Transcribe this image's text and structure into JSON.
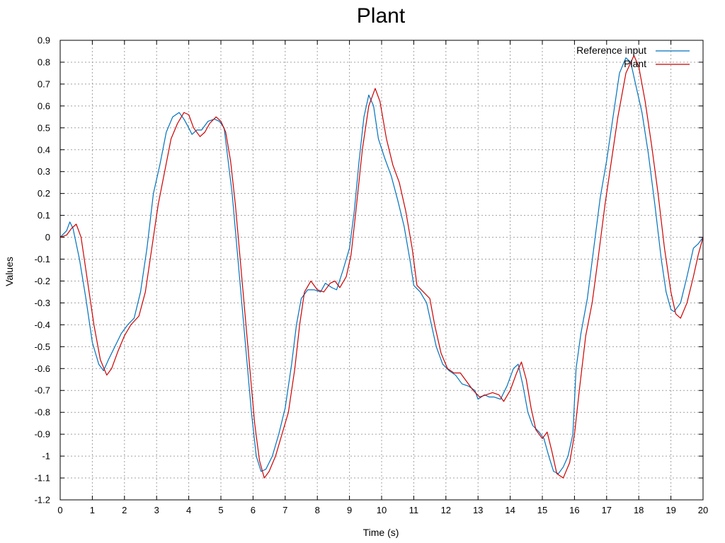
{
  "chart_data": {
    "type": "line",
    "title": "Plant",
    "xlabel": "Time (s)",
    "ylabel": "Values",
    "xlim": [
      0,
      20
    ],
    "ylim": [
      -1.2,
      0.9
    ],
    "grid": true,
    "legend_position": "top-right",
    "x_ticks": [
      "0",
      "1",
      "2",
      "3",
      "4",
      "5",
      "6",
      "7",
      "8",
      "9",
      "10",
      "11",
      "12",
      "13",
      "14",
      "15",
      "16",
      "17",
      "18",
      "19",
      "20"
    ],
    "y_ticks": [
      "0.9",
      "0.8",
      "0.7",
      "0.6",
      "0.5",
      "0.4",
      "0.3",
      "0.2",
      "0.1",
      "0",
      "-0.1",
      "-0.2",
      "-0.3",
      "-0.4",
      "-0.5",
      "-0.6",
      "-0.7",
      "-0.8",
      "-0.9",
      "-1",
      "-1.1",
      "-1.2"
    ],
    "series": [
      {
        "name": "Reference input",
        "color": "#0072bd",
        "points": [
          [
            0,
            0
          ],
          [
            0.2,
            0.03
          ],
          [
            0.3,
            0.07
          ],
          [
            0.4,
            0.04
          ],
          [
            0.6,
            -0.1
          ],
          [
            0.8,
            -0.28
          ],
          [
            1.0,
            -0.48
          ],
          [
            1.2,
            -0.58
          ],
          [
            1.35,
            -0.61
          ],
          [
            1.5,
            -0.56
          ],
          [
            1.7,
            -0.5
          ],
          [
            1.9,
            -0.44
          ],
          [
            2.1,
            -0.4
          ],
          [
            2.3,
            -0.37
          ],
          [
            2.5,
            -0.25
          ],
          [
            2.7,
            -0.05
          ],
          [
            2.9,
            0.2
          ],
          [
            3.1,
            0.33
          ],
          [
            3.3,
            0.48
          ],
          [
            3.5,
            0.55
          ],
          [
            3.7,
            0.57
          ],
          [
            3.85,
            0.54
          ],
          [
            4.0,
            0.5
          ],
          [
            4.1,
            0.47
          ],
          [
            4.25,
            0.49
          ],
          [
            4.4,
            0.49
          ],
          [
            4.6,
            0.53
          ],
          [
            4.8,
            0.54
          ],
          [
            4.95,
            0.53
          ],
          [
            5.1,
            0.5
          ],
          [
            5.2,
            0.38
          ],
          [
            5.35,
            0.2
          ],
          [
            5.5,
            -0.05
          ],
          [
            5.65,
            -0.3
          ],
          [
            5.8,
            -0.55
          ],
          [
            5.95,
            -0.8
          ],
          [
            6.1,
            -1.0
          ],
          [
            6.25,
            -1.07
          ],
          [
            6.4,
            -1.06
          ],
          [
            6.6,
            -1.0
          ],
          [
            6.8,
            -0.9
          ],
          [
            7.0,
            -0.78
          ],
          [
            7.2,
            -0.58
          ],
          [
            7.35,
            -0.4
          ],
          [
            7.5,
            -0.28
          ],
          [
            7.7,
            -0.24
          ],
          [
            7.9,
            -0.24
          ],
          [
            8.1,
            -0.25
          ],
          [
            8.25,
            -0.21
          ],
          [
            8.45,
            -0.23
          ],
          [
            8.6,
            -0.24
          ],
          [
            8.8,
            -0.15
          ],
          [
            9.0,
            -0.05
          ],
          [
            9.15,
            0.12
          ],
          [
            9.3,
            0.35
          ],
          [
            9.45,
            0.55
          ],
          [
            9.6,
            0.65
          ],
          [
            9.75,
            0.6
          ],
          [
            9.9,
            0.45
          ],
          [
            10.1,
            0.36
          ],
          [
            10.3,
            0.28
          ],
          [
            10.5,
            0.17
          ],
          [
            10.7,
            0.05
          ],
          [
            10.9,
            -0.12
          ],
          [
            11.0,
            -0.22
          ],
          [
            11.2,
            -0.25
          ],
          [
            11.4,
            -0.3
          ],
          [
            11.55,
            -0.4
          ],
          [
            11.7,
            -0.5
          ],
          [
            11.9,
            -0.58
          ],
          [
            12.1,
            -0.61
          ],
          [
            12.3,
            -0.63
          ],
          [
            12.5,
            -0.67
          ],
          [
            12.7,
            -0.68
          ],
          [
            12.9,
            -0.7
          ],
          [
            13.0,
            -0.74
          ],
          [
            13.2,
            -0.72
          ],
          [
            13.35,
            -0.73
          ],
          [
            13.5,
            -0.73
          ],
          [
            13.7,
            -0.74
          ],
          [
            13.9,
            -0.68
          ],
          [
            14.1,
            -0.6
          ],
          [
            14.25,
            -0.58
          ],
          [
            14.4,
            -0.68
          ],
          [
            14.55,
            -0.8
          ],
          [
            14.7,
            -0.86
          ],
          [
            14.9,
            -0.89
          ],
          [
            15.05,
            -0.92
          ],
          [
            15.2,
            -1.0
          ],
          [
            15.35,
            -1.07
          ],
          [
            15.5,
            -1.08
          ],
          [
            15.65,
            -1.05
          ],
          [
            15.8,
            -1.0
          ],
          [
            15.95,
            -0.9
          ],
          [
            16.05,
            -0.6
          ],
          [
            16.2,
            -0.44
          ],
          [
            16.4,
            -0.28
          ],
          [
            16.6,
            -0.05
          ],
          [
            16.8,
            0.18
          ],
          [
            17.0,
            0.35
          ],
          [
            17.2,
            0.55
          ],
          [
            17.4,
            0.75
          ],
          [
            17.6,
            0.82
          ],
          [
            17.75,
            0.8
          ],
          [
            17.9,
            0.7
          ],
          [
            18.1,
            0.57
          ],
          [
            18.3,
            0.38
          ],
          [
            18.5,
            0.15
          ],
          [
            18.7,
            -0.1
          ],
          [
            18.85,
            -0.25
          ],
          [
            19.0,
            -0.33
          ],
          [
            19.1,
            -0.34
          ],
          [
            19.3,
            -0.3
          ],
          [
            19.5,
            -0.18
          ],
          [
            19.7,
            -0.05
          ],
          [
            19.85,
            -0.03
          ],
          [
            20.0,
            0.0
          ]
        ]
      },
      {
        "name": "Plant",
        "color": "#cc0000",
        "points": [
          [
            0,
            0
          ],
          [
            0.2,
            0.01
          ],
          [
            0.35,
            0.04
          ],
          [
            0.5,
            0.06
          ],
          [
            0.65,
            0.0
          ],
          [
            0.85,
            -0.2
          ],
          [
            1.05,
            -0.4
          ],
          [
            1.25,
            -0.56
          ],
          [
            1.45,
            -0.63
          ],
          [
            1.6,
            -0.6
          ],
          [
            1.8,
            -0.52
          ],
          [
            2.0,
            -0.45
          ],
          [
            2.2,
            -0.4
          ],
          [
            2.45,
            -0.36
          ],
          [
            2.65,
            -0.25
          ],
          [
            2.85,
            -0.05
          ],
          [
            3.05,
            0.15
          ],
          [
            3.25,
            0.3
          ],
          [
            3.45,
            0.45
          ],
          [
            3.65,
            0.52
          ],
          [
            3.85,
            0.57
          ],
          [
            4.0,
            0.56
          ],
          [
            4.15,
            0.5
          ],
          [
            4.35,
            0.46
          ],
          [
            4.5,
            0.48
          ],
          [
            4.65,
            0.52
          ],
          [
            4.85,
            0.55
          ],
          [
            5.0,
            0.53
          ],
          [
            5.15,
            0.48
          ],
          [
            5.3,
            0.35
          ],
          [
            5.45,
            0.15
          ],
          [
            5.6,
            -0.1
          ],
          [
            5.75,
            -0.35
          ],
          [
            5.9,
            -0.6
          ],
          [
            6.05,
            -0.85
          ],
          [
            6.2,
            -1.02
          ],
          [
            6.35,
            -1.1
          ],
          [
            6.5,
            -1.07
          ],
          [
            6.7,
            -1.0
          ],
          [
            6.9,
            -0.9
          ],
          [
            7.1,
            -0.8
          ],
          [
            7.3,
            -0.6
          ],
          [
            7.45,
            -0.4
          ],
          [
            7.6,
            -0.25
          ],
          [
            7.8,
            -0.2
          ],
          [
            8.0,
            -0.24
          ],
          [
            8.2,
            -0.25
          ],
          [
            8.4,
            -0.21
          ],
          [
            8.55,
            -0.2
          ],
          [
            8.7,
            -0.23
          ],
          [
            8.9,
            -0.18
          ],
          [
            9.05,
            -0.08
          ],
          [
            9.2,
            0.12
          ],
          [
            9.4,
            0.4
          ],
          [
            9.6,
            0.6
          ],
          [
            9.8,
            0.68
          ],
          [
            9.95,
            0.62
          ],
          [
            10.15,
            0.45
          ],
          [
            10.35,
            0.33
          ],
          [
            10.55,
            0.25
          ],
          [
            10.75,
            0.12
          ],
          [
            10.95,
            -0.05
          ],
          [
            11.1,
            -0.22
          ],
          [
            11.3,
            -0.25
          ],
          [
            11.5,
            -0.28
          ],
          [
            11.65,
            -0.4
          ],
          [
            11.85,
            -0.53
          ],
          [
            12.05,
            -0.6
          ],
          [
            12.25,
            -0.62
          ],
          [
            12.45,
            -0.62
          ],
          [
            12.65,
            -0.66
          ],
          [
            12.85,
            -0.7
          ],
          [
            13.05,
            -0.73
          ],
          [
            13.25,
            -0.72
          ],
          [
            13.45,
            -0.71
          ],
          [
            13.65,
            -0.72
          ],
          [
            13.8,
            -0.75
          ],
          [
            14.0,
            -0.7
          ],
          [
            14.2,
            -0.62
          ],
          [
            14.35,
            -0.57
          ],
          [
            14.5,
            -0.65
          ],
          [
            14.65,
            -0.78
          ],
          [
            14.8,
            -0.88
          ],
          [
            15.0,
            -0.92
          ],
          [
            15.15,
            -0.89
          ],
          [
            15.3,
            -0.98
          ],
          [
            15.45,
            -1.08
          ],
          [
            15.65,
            -1.1
          ],
          [
            15.85,
            -1.03
          ],
          [
            16.0,
            -0.9
          ],
          [
            16.15,
            -0.7
          ],
          [
            16.35,
            -0.45
          ],
          [
            16.55,
            -0.3
          ],
          [
            16.75,
            -0.08
          ],
          [
            16.95,
            0.15
          ],
          [
            17.15,
            0.35
          ],
          [
            17.35,
            0.55
          ],
          [
            17.6,
            0.75
          ],
          [
            17.85,
            0.83
          ],
          [
            18.0,
            0.78
          ],
          [
            18.2,
            0.62
          ],
          [
            18.4,
            0.42
          ],
          [
            18.6,
            0.2
          ],
          [
            18.8,
            -0.05
          ],
          [
            19.0,
            -0.25
          ],
          [
            19.15,
            -0.35
          ],
          [
            19.3,
            -0.37
          ],
          [
            19.5,
            -0.3
          ],
          [
            19.7,
            -0.18
          ],
          [
            19.85,
            -0.08
          ],
          [
            20.0,
            0.0
          ]
        ]
      }
    ]
  }
}
